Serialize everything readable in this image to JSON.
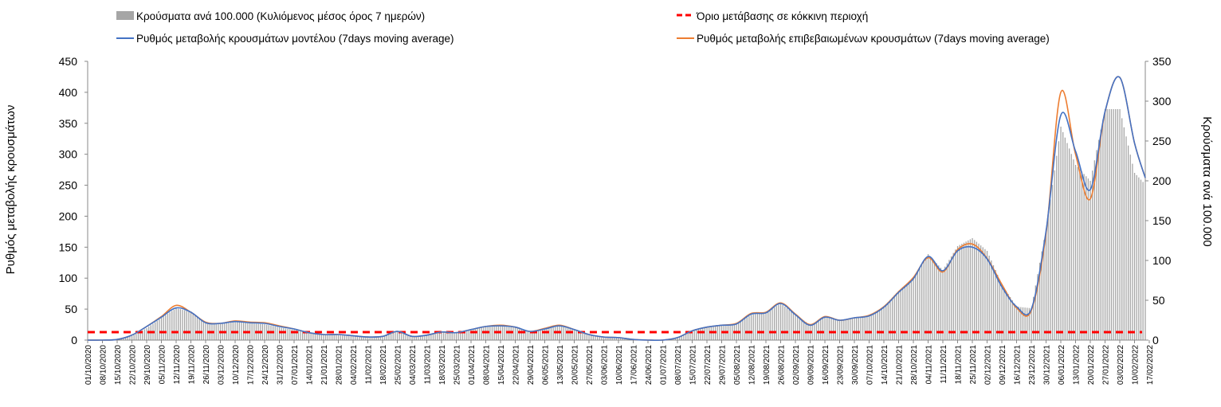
{
  "chart_data": {
    "type": "bar+line",
    "legend": {
      "bars": "Κρούσματα ανά 100.000 (Κυλιόμενος μέσος όρος 7 ημερών)",
      "threshold": "Όριο μετάβασης σε κόκκινη περιοχή",
      "model": "Ρυθμός μεταβολής κρουσμάτων μοντέλου (7days moving average)",
      "confirmed": "Ρυθμός μεταβολής επιβεβαιωμένων κρουσμάτων (7days moving average)"
    },
    "legend_placement": "top",
    "ylabel_left": "Ρυθμός μεταβολής κρουσμάτων",
    "ylabel_right": "Κρούσματα ανά 100.000",
    "ylim_left": [
      0,
      450
    ],
    "ylim_right": [
      0,
      350
    ],
    "yticks_left": [
      "0",
      "50",
      "100",
      "150",
      "200",
      "250",
      "300",
      "350",
      "400",
      "450"
    ],
    "yticks_right": [
      "0",
      "50",
      "100",
      "150",
      "200",
      "250",
      "300",
      "350"
    ],
    "categories": [
      "01/10/2020",
      "08/10/2020",
      "15/10/2020",
      "22/10/2020",
      "29/10/2020",
      "05/11/2020",
      "12/11/2020",
      "19/11/2020",
      "26/11/2020",
      "03/12/2020",
      "10/12/2020",
      "17/12/2020",
      "24/12/2020",
      "31/12/2020",
      "07/01/2021",
      "14/01/2021",
      "21/01/2021",
      "28/01/2021",
      "04/02/2021",
      "11/02/2021",
      "18/02/2021",
      "25/02/2021",
      "04/03/2021",
      "11/03/2021",
      "18/03/2021",
      "25/03/2021",
      "01/04/2021",
      "08/04/2021",
      "15/04/2021",
      "22/04/2021",
      "29/04/2021",
      "06/05/2021",
      "13/05/2021",
      "20/05/2021",
      "27/05/2021",
      "03/06/2021",
      "10/06/2021",
      "17/06/2021",
      "24/06/2021",
      "01/07/2021",
      "08/07/2021",
      "15/07/2021",
      "22/07/2021",
      "29/07/2021",
      "05/08/2021",
      "12/08/2021",
      "19/08/2021",
      "26/08/2021",
      "02/09/2021",
      "09/09/2021",
      "16/09/2021",
      "23/09/2021",
      "30/09/2021",
      "07/10/2021",
      "14/10/2021",
      "21/10/2021",
      "28/10/2021",
      "04/11/2021",
      "11/11/2021",
      "18/11/2021",
      "25/11/2021",
      "02/12/2021",
      "09/12/2021",
      "16/12/2021",
      "23/12/2021",
      "30/12/2021",
      "06/01/2022",
      "13/01/2022",
      "20/01/2022",
      "27/01/2022",
      "03/02/2022",
      "10/02/2022",
      "17/02/2022"
    ],
    "series": [
      {
        "name": "model",
        "axis": "left",
        "color": "#4472C4",
        "values": [
          0,
          0,
          1,
          8,
          22,
          37,
          52,
          45,
          28,
          27,
          30,
          28,
          27,
          22,
          18,
          12,
          9,
          9,
          7,
          5,
          6,
          14,
          6,
          8,
          13,
          12,
          17,
          22,
          23,
          21,
          14,
          18,
          23,
          17,
          9,
          5,
          4,
          1,
          0,
          0,
          4,
          15,
          21,
          24,
          26,
          42,
          44,
          59,
          41,
          24,
          37,
          32,
          36,
          39,
          53,
          77,
          99,
          135,
          112,
          144,
          150,
          131,
          86,
          54,
          50,
          176,
          363,
          305,
          243,
          369,
          424,
          318,
          262
        ]
      },
      {
        "name": "confirmed",
        "axis": "left",
        "color": "#ED7D31",
        "values": [
          0,
          0,
          1,
          8,
          22,
          38,
          56,
          45,
          29,
          27,
          31,
          29,
          28,
          23,
          18,
          12,
          9,
          9,
          7,
          5,
          6,
          14,
          6,
          8,
          13,
          12,
          17,
          22,
          24,
          21,
          14,
          19,
          24,
          17,
          9,
          5,
          4,
          1,
          0,
          0,
          4,
          15,
          21,
          24,
          27,
          43,
          45,
          60,
          42,
          25,
          38,
          32,
          36,
          40,
          54,
          78,
          101,
          133,
          110,
          146,
          155,
          132,
          90,
          52,
          48,
          172,
          400,
          300,
          228,
          368,
          424,
          318,
          262
        ]
      },
      {
        "name": "bars",
        "axis": "right",
        "color": "#A6A6A6",
        "values": [
          0,
          0,
          1,
          5,
          15,
          28,
          40,
          36,
          22,
          20,
          23,
          21,
          20,
          16,
          13,
          9,
          7,
          6,
          5,
          4,
          5,
          11,
          5,
          6,
          10,
          9,
          13,
          17,
          18,
          16,
          11,
          14,
          18,
          13,
          7,
          4,
          3,
          1,
          0,
          0,
          3,
          12,
          16,
          18,
          20,
          32,
          35,
          46,
          32,
          19,
          29,
          25,
          28,
          31,
          42,
          62,
          78,
          108,
          88,
          118,
          128,
          112,
          70,
          42,
          40,
          140,
          268,
          220,
          200,
          290,
          290,
          210,
          190
        ]
      },
      {
        "name": "threshold",
        "axis": "right",
        "color": "#FF0000",
        "value": 10
      }
    ]
  }
}
